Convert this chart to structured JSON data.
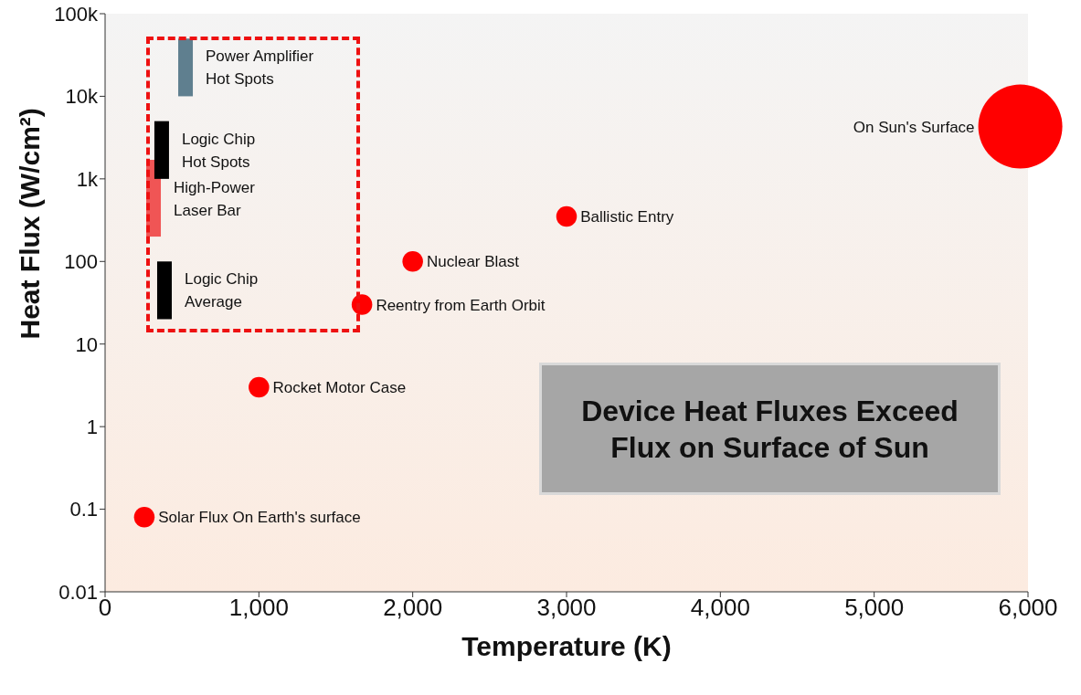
{
  "chart_data": {
    "type": "bubble",
    "xlabel": "Temperature (K)",
    "ylabel": "Heat Flux (W/cm²)",
    "log": "y",
    "xlim": [
      0,
      6000
    ],
    "xticks": [
      0,
      {
        "value": 1000,
        "label": "1,000"
      },
      {
        "value": 2000,
        "label": "2,000"
      },
      {
        "value": 3000,
        "label": "3,000"
      },
      {
        "value": 4000,
        "label": "4,000"
      },
      {
        "value": 5000,
        "label": "5,000"
      },
      {
        "value": 6000,
        "label": "6,000"
      }
    ],
    "ylim": [
      0.01,
      100000
    ],
    "yticks": [
      0.01,
      0.1,
      1,
      10,
      100,
      {
        "value": 1000,
        "label": "1k"
      },
      {
        "value": 10000,
        "label": "10k"
      },
      {
        "value": 100000,
        "label": "100k"
      }
    ],
    "series": [
      {
        "type": "bar",
        "x": [
          315,
          368,
          386,
          523
        ],
        "base": [
          200,
          1000,
          20,
          10000
        ],
        "values": [
          1500,
          4000,
          80,
          40000
        ],
        "colors": [
          "#f05555",
          "#000000",
          "#000000",
          "#5f7f8f"
        ]
      },
      {
        "x": [
          255,
          1000,
          1670,
          2000,
          3000,
          5950
        ],
        "values": [
          0.08,
          3,
          30,
          100,
          350,
          4300
        ],
        "sizes": [
          0.06,
          0.06,
          0.06,
          0.06,
          0.06,
          1
        ],
        "color": "#ff0000"
      }
    ],
    "annotations": [
      {
        "text": "Power Amplifier\nHot Spots",
        "x": 523,
        "y": 50000
      },
      {
        "text": "Logic Chip\nHot Spots",
        "x": 368,
        "y": 5000
      },
      {
        "text": "High-Power\nLaser Bar",
        "x": 315,
        "y": 1700
      },
      {
        "text": "Logic Chip\nAverage",
        "x": 386,
        "y": 100
      },
      {
        "text": "Solar Flux On Earth's surface",
        "x": 255,
        "y": 0.08
      },
      {
        "text": "Rocket Motor Case",
        "x": 1000,
        "y": 3
      },
      {
        "text": "Reentry from Earth Orbit",
        "x": 1670,
        "y": 30
      },
      {
        "text": "Nuclear Blast",
        "x": 2000,
        "y": 100
      },
      {
        "text": "Ballistic Entry",
        "x": 3000,
        "y": 350
      },
      {
        "text": "On Sun's Surface",
        "x": 5950,
        "y": 4300
      },
      "Device Heat Fluxes Exceed\nFlux on Surface of Sun"
    ]
  }
}
